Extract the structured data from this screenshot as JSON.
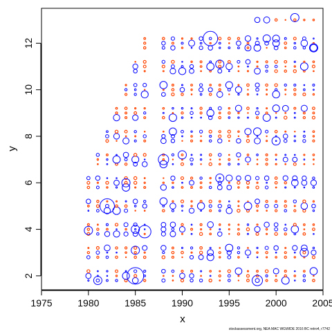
{
  "chart_data": {
    "type": "scatter",
    "xlabel": "x",
    "ylabel": "y",
    "xlim": [
      1975,
      2005
    ],
    "ylim": [
      1.4,
      13.5
    ],
    "xticks": [
      1975,
      1980,
      1985,
      1990,
      1995,
      2000,
      2005
    ],
    "yticks": [
      2,
      4,
      6,
      8,
      10,
      12
    ],
    "grid": false,
    "colors": {
      "positive": "#0000ff",
      "negative": "#ff4500"
    },
    "marker_note": "bubble size proportional to magnitude; blue open circles = positive, orange-red = negative",
    "rows": [
      {
        "y": 1.8,
        "x_start": 1980,
        "x_end": 2004
      },
      {
        "y": 2.0,
        "x_start": 1980,
        "x_end": 2004
      },
      {
        "y": 2.2,
        "x_start": 1980,
        "x_end": 2004
      },
      {
        "y": 2.8,
        "x_start": 1980,
        "x_end": 2004
      },
      {
        "y": 3.0,
        "x_start": 1980,
        "x_end": 2004
      },
      {
        "y": 3.2,
        "x_start": 1980,
        "x_end": 2004
      },
      {
        "y": 3.8,
        "x_start": 1980,
        "x_end": 2004
      },
      {
        "y": 4.0,
        "x_start": 1980,
        "x_end": 2004
      },
      {
        "y": 4.2,
        "x_start": 1980,
        "x_end": 2004
      },
      {
        "y": 4.8,
        "x_start": 1980,
        "x_end": 2004
      },
      {
        "y": 5.0,
        "x_start": 1980,
        "x_end": 2004
      },
      {
        "y": 5.2,
        "x_start": 1980,
        "x_end": 2004
      },
      {
        "y": 5.8,
        "x_start": 1980,
        "x_end": 2004
      },
      {
        "y": 6.0,
        "x_start": 1980,
        "x_end": 2004
      },
      {
        "y": 6.2,
        "x_start": 1980,
        "x_end": 2004
      },
      {
        "y": 6.8,
        "x_start": 1981,
        "x_end": 2004
      },
      {
        "y": 7.0,
        "x_start": 1981,
        "x_end": 2004
      },
      {
        "y": 7.2,
        "x_start": 1981,
        "x_end": 2004
      },
      {
        "y": 7.8,
        "x_start": 1982,
        "x_end": 2004
      },
      {
        "y": 8.0,
        "x_start": 1982,
        "x_end": 2004
      },
      {
        "y": 8.2,
        "x_start": 1982,
        "x_end": 2004
      },
      {
        "y": 8.8,
        "x_start": 1983,
        "x_end": 2004
      },
      {
        "y": 9.0,
        "x_start": 1983,
        "x_end": 2004
      },
      {
        "y": 9.2,
        "x_start": 1983,
        "x_end": 2004
      },
      {
        "y": 9.8,
        "x_start": 1984,
        "x_end": 2004
      },
      {
        "y": 10.0,
        "x_start": 1984,
        "x_end": 2004
      },
      {
        "y": 10.2,
        "x_start": 1984,
        "x_end": 2004
      },
      {
        "y": 10.8,
        "x_start": 1985,
        "x_end": 2004
      },
      {
        "y": 11.0,
        "x_start": 1985,
        "x_end": 2004
      },
      {
        "y": 11.2,
        "x_start": 1985,
        "x_end": 2004
      },
      {
        "y": 11.8,
        "x_start": 1986,
        "x_end": 2004
      },
      {
        "y": 12.0,
        "x_start": 1986,
        "x_end": 2004
      },
      {
        "y": 12.2,
        "x_start": 1986,
        "x_end": 2004
      },
      {
        "y": 13.0,
        "x_start": 1998,
        "x_end": 2004
      }
    ],
    "skipped_years": [
      1987
    ],
    "large_residuals": [
      {
        "x": 1993,
        "y": 12.2,
        "sign": "positive",
        "mag": 7
      },
      {
        "x": 2002,
        "y": 13.1,
        "sign": "positive",
        "mag": 4
      },
      {
        "x": 1982,
        "y": 5.0,
        "sign": "positive",
        "mag": 7
      },
      {
        "x": 1985,
        "y": 2.0,
        "sign": "positive",
        "mag": 8
      },
      {
        "x": 1981,
        "y": 1.8,
        "sign": "positive",
        "mag": 4
      },
      {
        "x": 1986,
        "y": 3.9,
        "sign": "positive",
        "mag": 6
      },
      {
        "x": 1980,
        "y": 3.95,
        "sign": "positive",
        "mag": 4
      },
      {
        "x": 1985,
        "y": 3.1,
        "sign": "positive",
        "mag": 4
      },
      {
        "x": 1985,
        "y": 4.0,
        "sign": "positive",
        "mag": 4
      },
      {
        "x": 1984,
        "y": 6.0,
        "sign": "positive",
        "mag": 4
      },
      {
        "x": 1988,
        "y": 7.0,
        "sign": "positive",
        "mag": 5
      },
      {
        "x": 1990,
        "y": 7.2,
        "sign": "positive",
        "mag": 4
      },
      {
        "x": 2000,
        "y": 7.8,
        "sign": "positive",
        "mag": 4
      },
      {
        "x": 2004,
        "y": 11.8,
        "sign": "positive",
        "mag": 4
      },
      {
        "x": 1998,
        "y": 1.8,
        "sign": "positive",
        "mag": 5
      },
      {
        "x": 1994,
        "y": 6.2,
        "sign": "positive",
        "mag": 4
      },
      {
        "x": 2003,
        "y": 3.0,
        "sign": "positive",
        "mag": 4
      },
      {
        "x": 1997,
        "y": 11.8,
        "sign": "positive",
        "mag": 3
      },
      {
        "x": 1994,
        "y": 11.1,
        "sign": "positive",
        "mag": 4
      }
    ],
    "seed": 42
  },
  "footer_text": "stockassessment.org, NEA MAC WGWIDE 2016 BC retro4, r7742"
}
